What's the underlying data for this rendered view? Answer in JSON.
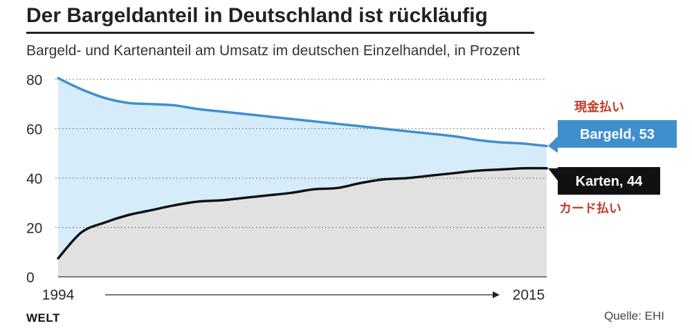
{
  "title": "Der Bargeldanteil in Deutschland ist rückläufig",
  "subtitle": "Bargeld- und Kartenanteil am Umsatz im deutschen Einzelhandel, in Prozent",
  "logo": "WELT",
  "source": "Quelle: EHI",
  "colors": {
    "bargeld_line": "#3f8fcd",
    "bargeld_area": "#d6ecfa",
    "karten_line": "#111111",
    "karten_area": "#e1e1e1",
    "annotation": "#c0392b"
  },
  "chart_data": {
    "type": "area",
    "x": [
      1994,
      1995,
      1996,
      1997,
      1998,
      1999,
      2000,
      2001,
      2002,
      2003,
      2004,
      2005,
      2006,
      2007,
      2008,
      2009,
      2010,
      2011,
      2012,
      2013,
      2014,
      2015
    ],
    "series": [
      {
        "name": "Bargeld",
        "values": [
          80.5,
          76,
          72.5,
          70.5,
          70,
          69.5,
          68,
          67,
          66,
          65,
          64,
          63,
          62,
          61,
          60,
          59,
          58,
          57,
          55.5,
          54.5,
          54,
          53
        ]
      },
      {
        "name": "Karten",
        "values": [
          7.5,
          18,
          22,
          25,
          27,
          29,
          30.5,
          31,
          32,
          33,
          34,
          35.5,
          36,
          38,
          39.5,
          40,
          41,
          42,
          43,
          43.5,
          44,
          44
        ]
      }
    ],
    "series_labels": [
      "Bargeld, 53",
      "Karten, 44"
    ],
    "annotations": [
      "現金払い",
      "カード払い"
    ],
    "xlabel": "",
    "ylabel": "",
    "x_ticks": [
      "1994",
      "2015"
    ],
    "y_ticks": [
      0,
      20,
      40,
      60,
      80
    ],
    "ylim": [
      0,
      80
    ],
    "grid": "horizontal dotted",
    "legend": "inline labels at right end of lines"
  }
}
